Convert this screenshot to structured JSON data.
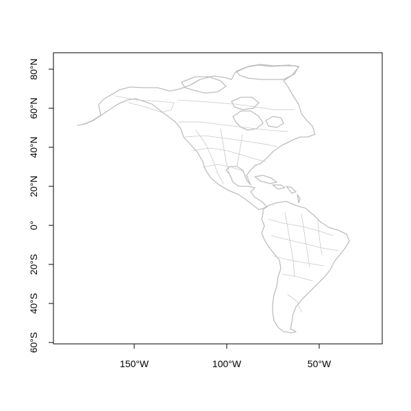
{
  "map": {
    "projection": "longitude-latitude",
    "colors": {
      "background": "#ffffff",
      "frame": "#000000",
      "outline": "#bdbdbd",
      "text": "#000000"
    },
    "x_axis": {
      "ticks": [
        {
          "value": -150,
          "label": "150°W"
        },
        {
          "value": -100,
          "label": "100°W"
        },
        {
          "value": -50,
          "label": "50°W"
        }
      ]
    },
    "y_axis": {
      "ticks": [
        {
          "value": 80,
          "label": "80°N"
        },
        {
          "value": 60,
          "label": "60°N"
        },
        {
          "value": 40,
          "label": "40°N"
        },
        {
          "value": 20,
          "label": "20°N"
        },
        {
          "value": 0,
          "label": "0°"
        },
        {
          "value": -20,
          "label": "20°S"
        },
        {
          "value": -40,
          "label": "40°S"
        },
        {
          "value": -60,
          "label": "60°S"
        }
      ]
    },
    "regions": [
      "North America",
      "Central America",
      "Caribbean",
      "South America",
      "Greenland"
    ]
  }
}
